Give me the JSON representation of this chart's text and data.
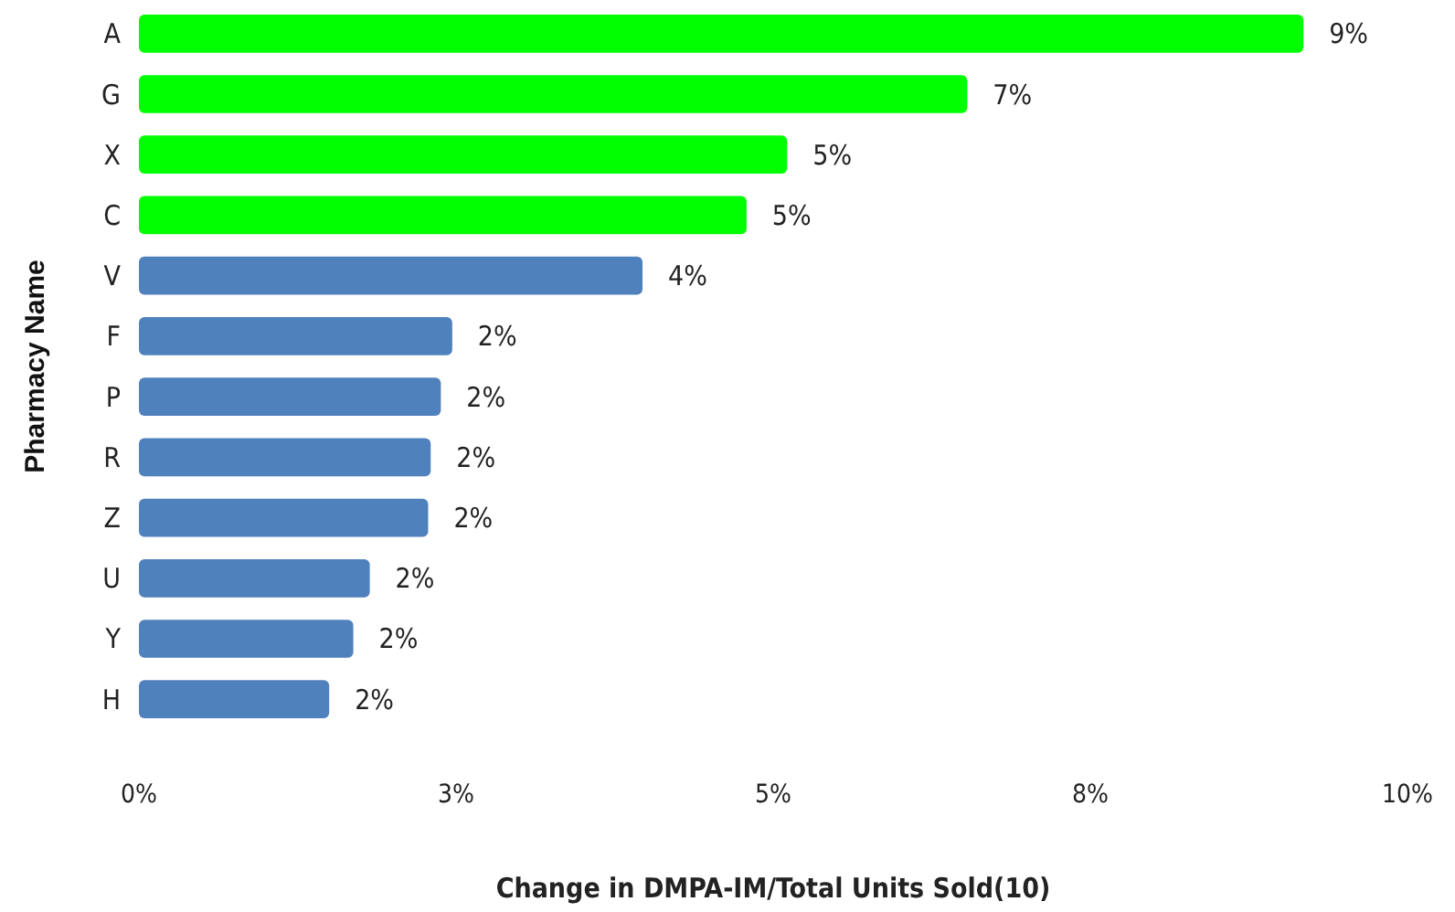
{
  "chart_data": {
    "type": "bar",
    "orientation": "horizontal",
    "xlabel": "Change in DMPA-IM/Total Units Sold(10)",
    "ylabel": "Pharmacy Name",
    "categories": [
      "A",
      "G",
      "X",
      "C",
      "V",
      "F",
      "P",
      "R",
      "Z",
      "U",
      "Y",
      "H"
    ],
    "values": [
      9.18,
      6.53,
      5.11,
      4.79,
      3.97,
      2.47,
      2.38,
      2.3,
      2.28,
      1.82,
      1.69,
      1.5
    ],
    "value_labels": [
      "9%",
      "7%",
      "5%",
      "5%",
      "4%",
      "2%",
      "2%",
      "2%",
      "2%",
      "2%",
      "2%",
      "2%"
    ],
    "colors": [
      "#00ff00",
      "#00ff00",
      "#00ff00",
      "#00ff00",
      "#4f81bd",
      "#4f81bd",
      "#4f81bd",
      "#4f81bd",
      "#4f81bd",
      "#4f81bd",
      "#4f81bd",
      "#4f81bd"
    ],
    "xlim": [
      0,
      10
    ],
    "xticks": [
      {
        "value": 0,
        "label": "0%"
      },
      {
        "value": 2.5,
        "label": "3%"
      },
      {
        "value": 5,
        "label": "5%"
      },
      {
        "value": 7.5,
        "label": "8%"
      },
      {
        "value": 10,
        "label": "10%"
      }
    ],
    "grid": false
  }
}
